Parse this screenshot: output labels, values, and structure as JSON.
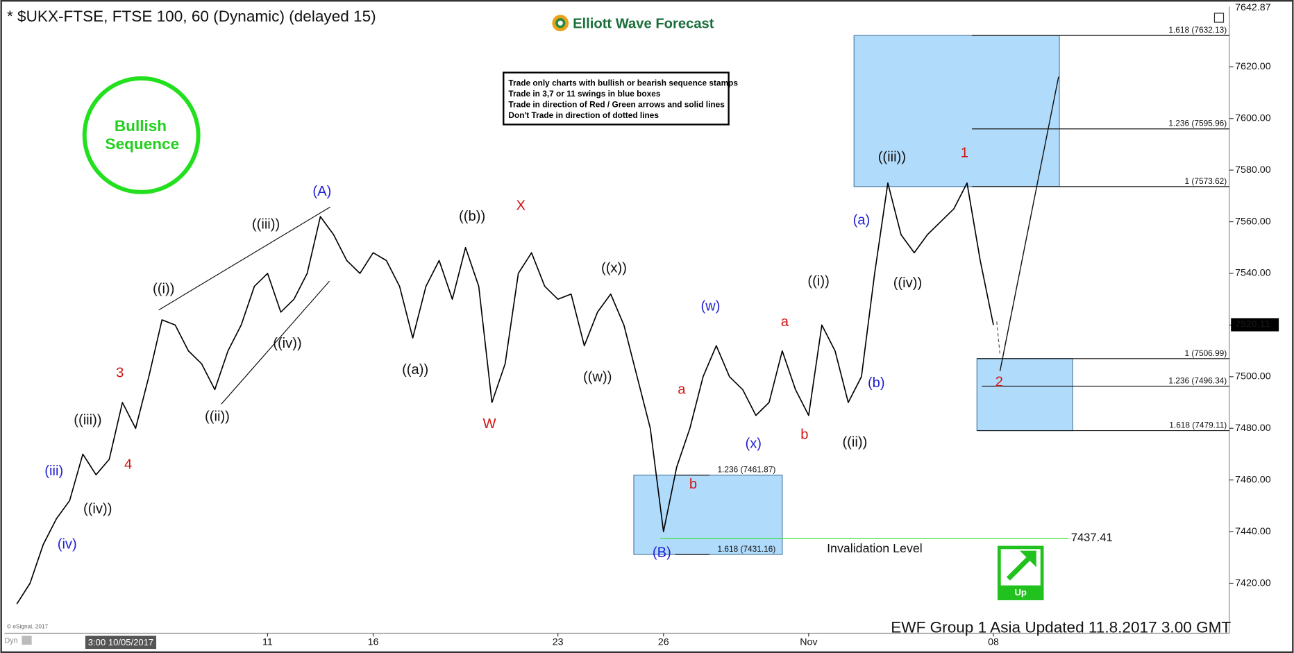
{
  "chart_data": {
    "type": "line",
    "title": "* $UKX-FTSE, FTSE 100, 60 (Dynamic) (delayed 15)",
    "brand": "Elliott Wave Forecast",
    "footer": "EWF Group 1 Asia Updated 11.8.2017 3.00 GMT",
    "copyright": "© eSignal, 2017",
    "mode_label": "Dyn",
    "cursor_label": "3:00 10/05/2017",
    "stamp": [
      "Bullish",
      "Sequence"
    ],
    "notes": [
      "Trade only charts with bullish or bearish sequence stamps",
      "Trade in 3,7 or 11 swings in blue boxes",
      "Trade in direction of Red / Green arrows and solid lines",
      "Don't Trade in direction of dotted lines"
    ],
    "signal": "Up",
    "invalidation": {
      "value": 7437.41,
      "label": "7437.41",
      "text": "Invalidation Level"
    },
    "last_price": {
      "value": 7520.11,
      "label": "7520.11"
    },
    "high_price": {
      "value": 7642.87,
      "label": "7642.87"
    },
    "color": "#000000",
    "categories": [
      null,
      null,
      null,
      null,
      null,
      null,
      null,
      null,
      null,
      null,
      null,
      null,
      null,
      null,
      null,
      null,
      null,
      null,
      null,
      "11",
      null,
      null,
      null,
      null,
      null,
      null,
      null,
      "16",
      null,
      null,
      null,
      null,
      null,
      null,
      null,
      null,
      null,
      null,
      null,
      null,
      null,
      "23",
      null,
      null,
      null,
      null,
      null,
      null,
      null,
      "26",
      null,
      null,
      null,
      null,
      null,
      null,
      null,
      null,
      null,
      null,
      "Nov",
      null,
      null,
      null,
      null,
      null,
      null,
      null,
      null,
      null,
      null,
      null,
      null,
      null,
      "08"
    ],
    "values": [
      7412,
      7420,
      7435,
      7445,
      7452,
      7470,
      7462,
      7468,
      7490,
      7480,
      7500,
      7522,
      7520,
      7510,
      7505,
      7495,
      7510,
      7520,
      7535,
      7540,
      7525,
      7530,
      7540,
      7562,
      7555,
      7545,
      7540,
      7548,
      7545,
      7535,
      7515,
      7535,
      7545,
      7530,
      7550,
      7535,
      7490,
      7505,
      7540,
      7548,
      7535,
      7530,
      7532,
      7512,
      7525,
      7532,
      7520,
      7500,
      7480,
      7440,
      7465,
      7480,
      7500,
      7512,
      7500,
      7495,
      7485,
      7490,
      7510,
      7495,
      7485,
      7520,
      7510,
      7490,
      7500,
      7540,
      7575,
      7555,
      7548,
      7555,
      7560,
      7565,
      7575,
      7545,
      7520
    ],
    "ylim": [
      7408,
      7643
    ],
    "yticks": [
      {
        "value": 7420,
        "label": "7420.00"
      },
      {
        "value": 7440,
        "label": "7440.00"
      },
      {
        "value": 7460,
        "label": "7460.00"
      },
      {
        "value": 7480,
        "label": "7480.00"
      },
      {
        "value": 7500,
        "label": "7500.00"
      },
      {
        "value": 7520,
        "label": "7520.00"
      },
      {
        "value": 7540,
        "label": "7540.00"
      },
      {
        "value": 7560,
        "label": "7560.00"
      },
      {
        "value": 7580,
        "label": "7580.00"
      },
      {
        "value": 7600,
        "label": "7600.00"
      },
      {
        "value": 7620,
        "label": "7620.00"
      }
    ],
    "fib_levels": [
      {
        "value": 7632.13,
        "label": "1.618 (7632.13)"
      },
      {
        "value": 7595.96,
        "label": "1.236 (7595.96)"
      },
      {
        "value": 7573.62,
        "label": "1 (7573.62)"
      },
      {
        "value": 7506.99,
        "label": "1 (7506.99)"
      },
      {
        "value": 7496.34,
        "label": "1.236 (7496.34)"
      },
      {
        "value": 7479.11,
        "label": "1.618 (7479.11)"
      },
      {
        "value": 7461.87,
        "label": "1.236 (7461.87)"
      },
      {
        "value": 7431.16,
        "label": "1.618 (7431.16)"
      }
    ],
    "wave_labels": [
      "(A)",
      "((iii))",
      "((i))",
      "3",
      "((iii))",
      "(iii)",
      "4",
      "((iv))",
      "(iv)",
      "((ii))",
      "((iv))",
      "((b))",
      "((a))",
      "X",
      "W",
      "((x))",
      "((w))",
      "a",
      "b",
      "(B)",
      "(w)",
      "(x)",
      "a",
      "b",
      "((i))",
      "((ii))",
      "(b)",
      "(a)",
      "((iii))",
      "((iv))",
      "1",
      "2"
    ]
  }
}
